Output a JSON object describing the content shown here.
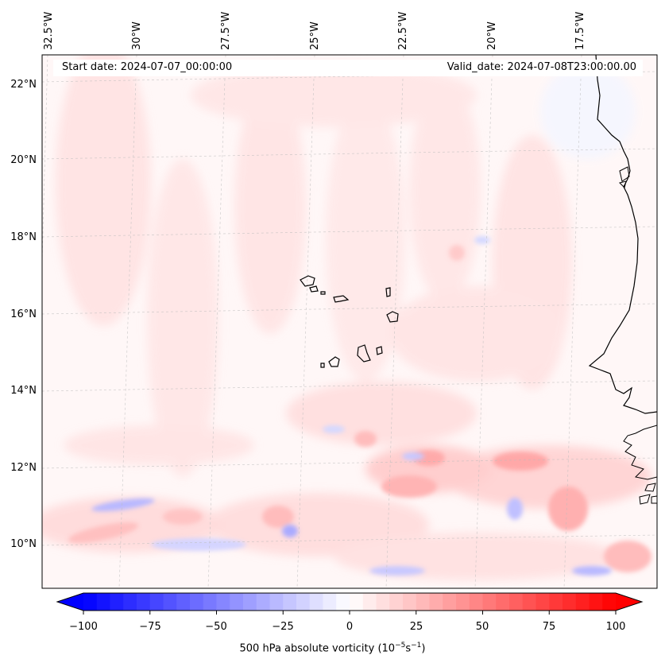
{
  "map": {
    "start_date": "Start date: 2024-07-07_00:00:00",
    "valid_date": "Valid_date: 2024-07-08T23:00:00.00",
    "lon_labels": [
      "32.5°W",
      "30°W",
      "27.5°W",
      "25°W",
      "22.5°W",
      "20°W",
      "17.5°W"
    ],
    "lat_labels": [
      "22°N",
      "20°N",
      "18°N",
      "16°N",
      "14°N",
      "12°N",
      "10°N"
    ],
    "field": "500 hPa absolute vorticity",
    "land_features": [
      "west-africa-coastline",
      "cape-verde-islands"
    ]
  },
  "colorbar": {
    "ticks": [
      "−100",
      "−75",
      "−50",
      "−25",
      "0",
      "25",
      "50",
      "75",
      "100"
    ],
    "title_prefix": "500 hPa absolute vorticity (10",
    "title_exp1": "−5",
    "title_mid": "s",
    "title_exp2": "−1",
    "title_suffix": ")",
    "min": -100,
    "max": 100,
    "colors": {
      "negative": "#0000ff",
      "zero": "#ffffff",
      "positive": "#ff0000"
    }
  }
}
